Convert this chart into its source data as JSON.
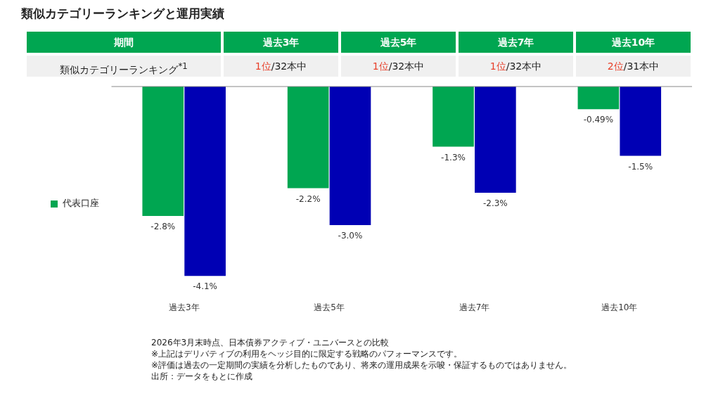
{
  "chart_data": {
    "type": "bar",
    "title": "類似カテゴリーランキングと運用実績",
    "categories": [
      "過去3年",
      "過去5年",
      "過去7年",
      "過去10年"
    ],
    "series": [
      {
        "name": "代表口座",
        "color": "#00a651",
        "values": [
          -2.8,
          -2.2,
          -1.3,
          -0.49
        ],
        "value_labels": [
          "-2.8%",
          "-2.2%",
          "-1.3%",
          "-0.49%"
        ]
      },
      {
        "color": "#0000b4",
        "values": [
          -4.1,
          -3.0,
          -2.3,
          -1.5
        ],
        "value_labels": [
          "-4.1%",
          "-3.0%",
          "-2.3%",
          "-1.5%"
        ]
      }
    ],
    "relative": false,
    "legend": "left",
    "grid": false,
    "annotations": [
      "期間",
      "類似カテゴリーランキング$^{*1}$",
      "1位/32本中",
      "1位/32本中",
      "1位/32本中",
      "2位/31本中",
      "2026年3月末時点、日本債券アクティブ・ユニバースとの比較",
      "※上記はデリバティブの利用をヘッジ目的に限定する戦略のパフォーマンスです。",
      "※評価は過去の一定期間の実績を分析したものであり、将来の運用成果を示唆・保証するものではありません。",
      "出所：データをもとに作成"
    ]
  }
}
